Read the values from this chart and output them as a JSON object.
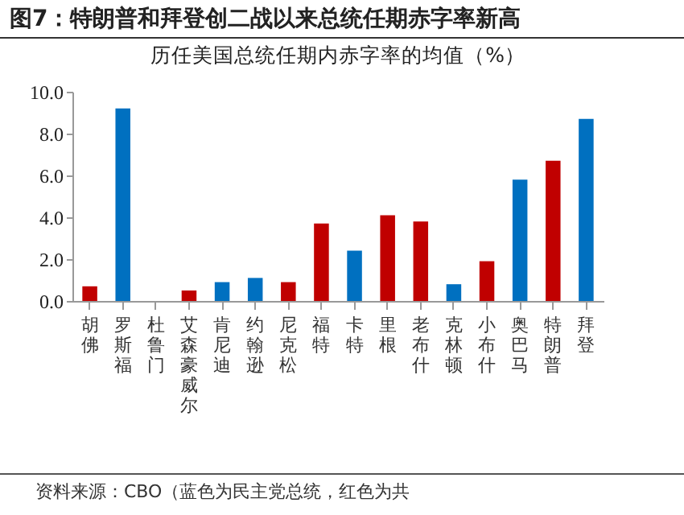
{
  "chart_data": {
    "type": "bar",
    "title": "图7：特朗普和拜登创二战以来总统任期赤字率新高",
    "subtitle": "历任美国总统任期内赤字率的均值（%）",
    "categories": [
      "胡佛",
      "罗斯福",
      "杜鲁门",
      "艾森豪威尔",
      "肯尼迪",
      "约翰逊",
      "尼克松",
      "福特",
      "卡特",
      "里根",
      "老布什",
      "克林顿",
      "小布什",
      "奥巴马",
      "特朗普",
      "拜登"
    ],
    "values": [
      0.7,
      9.2,
      null,
      0.5,
      0.9,
      1.1,
      0.9,
      3.7,
      2.4,
      4.1,
      3.8,
      0.8,
      1.9,
      5.8,
      6.7,
      8.7
    ],
    "colors": [
      "#c00000",
      "#0070c0",
      "#0070c0",
      "#c00000",
      "#0070c0",
      "#0070c0",
      "#c00000",
      "#c00000",
      "#0070c0",
      "#c00000",
      "#c00000",
      "#0070c0",
      "#c00000",
      "#0070c0",
      "#c00000",
      "#0070c0"
    ],
    "ylim": [
      0,
      10
    ],
    "yticks": [
      {
        "value": 0,
        "label": "0.0"
      },
      {
        "value": 2,
        "label": "2.0"
      },
      {
        "value": 4,
        "label": "4.0"
      },
      {
        "value": 6,
        "label": "6.0"
      },
      {
        "value": 8,
        "label": "8.0"
      },
      {
        "value": 10,
        "label": "10.0"
      }
    ],
    "grid": false,
    "annotations": [
      "资料来源：CBO（蓝色为民主党总统，红色为共"
    ]
  }
}
